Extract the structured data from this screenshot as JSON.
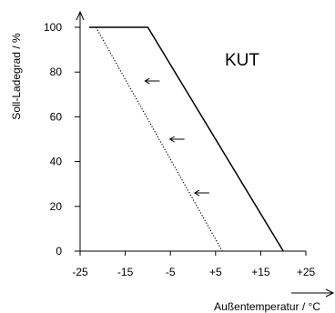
{
  "chart_data": {
    "type": "line",
    "title": "KUT",
    "xlabel": "Außentemperatur / °C",
    "ylabel": "Soll-Ladegrad / %",
    "xlim": [
      -25,
      25
    ],
    "ylim": [
      0,
      100
    ],
    "x_ticks": [
      "-25",
      "-15",
      "-5",
      "+5",
      "+15",
      "+25"
    ],
    "y_ticks": [
      "0",
      "20",
      "40",
      "60",
      "80",
      "100"
    ],
    "grid": false,
    "series": [
      {
        "style": "solid",
        "x": [
          -23,
          -10,
          20
        ],
        "y": [
          100,
          100,
          0
        ]
      },
      {
        "style": "dotted",
        "x": [
          -21.5,
          6.5
        ],
        "y": [
          100,
          0
        ]
      }
    ],
    "annotations": [
      {
        "type": "arrow",
        "direction": "left",
        "x": -9,
        "y": 76
      },
      {
        "type": "arrow",
        "direction": "left",
        "x": -3.5,
        "y": 50
      },
      {
        "type": "arrow",
        "direction": "left",
        "x": 2,
        "y": 26
      }
    ],
    "colors": {
      "line": "#000000",
      "axis": "#000000",
      "background": "#ffffff"
    }
  }
}
